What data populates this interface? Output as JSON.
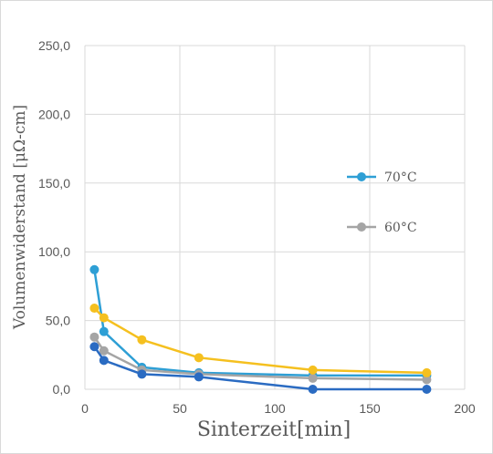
{
  "chart_data": {
    "type": "line",
    "xlabel": "Sinterzeit[min]",
    "ylabel": "Volumenwiderstand [μΩ-cm]",
    "xlim": [
      0,
      200
    ],
    "ylim": [
      0,
      250
    ],
    "xticks": [
      0,
      50,
      100,
      150,
      200
    ],
    "xtick_labels": [
      "0",
      "50",
      "100",
      "150",
      "200"
    ],
    "yticks": [
      0,
      50,
      100,
      150,
      200,
      250
    ],
    "ytick_labels": [
      "0,0",
      "50,0",
      "100,0",
      "150,0",
      "200,0",
      "250,0"
    ],
    "grid": true,
    "legend_position": "right",
    "series": [
      {
        "name": "70°C",
        "color": "#2e9fd5",
        "x": [
          5,
          10,
          30,
          60,
          120,
          180
        ],
        "y": [
          87,
          42,
          16,
          12,
          10,
          10
        ],
        "legend": true
      },
      {
        "name": "60°C",
        "color": "#a5a5a5",
        "x": [
          5,
          10,
          30,
          60,
          120,
          180
        ],
        "y": [
          38,
          28,
          14,
          11,
          8,
          7
        ],
        "legend": true
      },
      {
        "color": "#f5c01f",
        "x": [
          5,
          10,
          30,
          60,
          120,
          180
        ],
        "y": [
          59,
          52,
          36,
          23,
          14,
          12
        ],
        "legend": false
      },
      {
        "color": "#2a6bc2",
        "x": [
          5,
          10,
          30,
          60,
          120,
          180
        ],
        "y": [
          31,
          21,
          11,
          9,
          0,
          0
        ],
        "legend": false
      }
    ]
  }
}
